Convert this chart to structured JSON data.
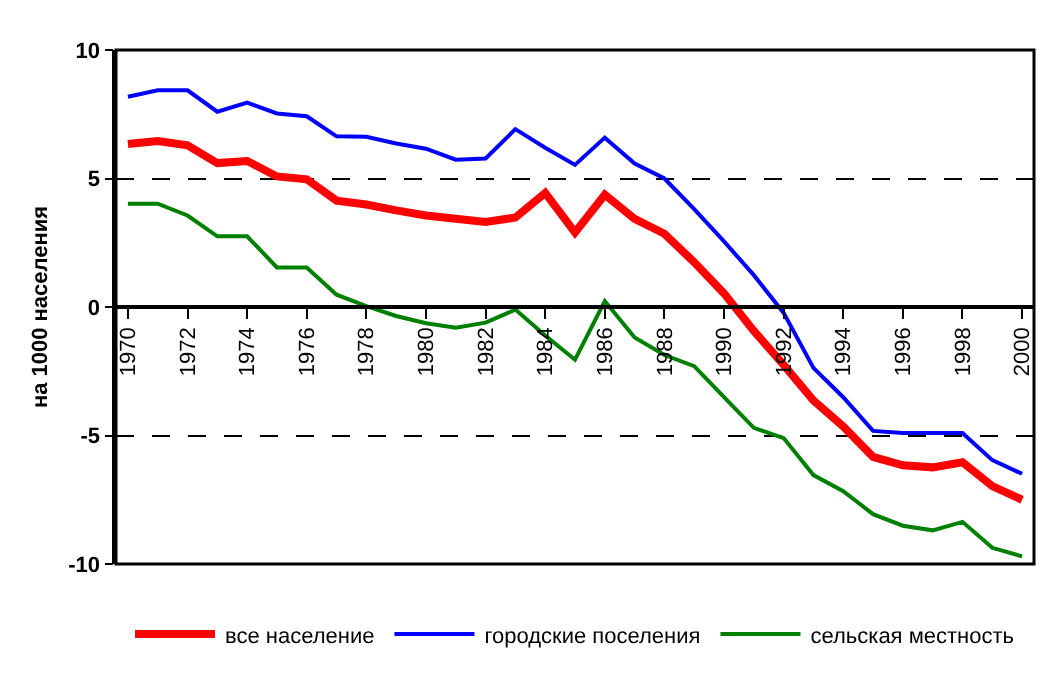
{
  "chart_data": {
    "type": "line",
    "ylabel": "на 1000 населения",
    "x": [
      1970,
      1971,
      1972,
      1973,
      1974,
      1975,
      1976,
      1977,
      1978,
      1979,
      1980,
      1981,
      1982,
      1983,
      1984,
      1985,
      1986,
      1987,
      1988,
      1989,
      1990,
      1991,
      1992,
      1993,
      1994,
      1995,
      1996,
      1997,
      1998,
      1999,
      2000
    ],
    "series": [
      {
        "name": "все население",
        "color": "#ff0000",
        "values": [
          6.34,
          6.46,
          6.29,
          5.6,
          5.68,
          5.08,
          4.97,
          4.14,
          3.99,
          3.76,
          3.56,
          3.43,
          3.31,
          3.48,
          4.44,
          2.9,
          4.37,
          3.43,
          2.85,
          1.74,
          0.53,
          -0.93,
          -2.25,
          -3.64,
          -4.65,
          -5.83,
          -6.16,
          -6.24,
          -6.04,
          -6.97,
          -7.5
        ]
      },
      {
        "name": "городские поселения",
        "color": "#0000ff",
        "values": [
          8.18,
          8.43,
          8.43,
          7.6,
          7.95,
          7.53,
          7.42,
          6.64,
          6.62,
          6.36,
          6.16,
          5.73,
          5.78,
          6.92,
          6.2,
          5.53,
          6.59,
          5.58,
          5.0,
          3.81,
          2.55,
          1.24,
          -0.23,
          -2.37,
          -3.51,
          -4.82,
          -4.9,
          -4.9,
          -4.9,
          -5.96,
          -6.49
        ]
      },
      {
        "name": "сельская местность",
        "color": "#008000",
        "values": [
          4.02,
          4.02,
          3.56,
          2.75,
          2.75,
          1.54,
          1.54,
          0.48,
          0.03,
          -0.35,
          -0.63,
          -0.81,
          -0.61,
          -0.1,
          -1.11,
          -2.05,
          0.23,
          -1.19,
          -1.87,
          -2.3,
          -3.51,
          -4.7,
          -5.1,
          -6.54,
          -7.17,
          -8.06,
          -8.51,
          -8.69,
          -8.36,
          -9.37,
          -9.7
        ]
      }
    ],
    "xlim": [
      1969.6,
      2000.4
    ],
    "xticks": [
      1970,
      1972,
      1974,
      1976,
      1978,
      1980,
      1982,
      1984,
      1986,
      1988,
      1990,
      1992,
      1994,
      1996,
      1998,
      2000
    ],
    "ylim": [
      -10,
      10
    ],
    "yticks": [
      -10,
      -5,
      0,
      5,
      10
    ],
    "grid": "y",
    "legend": "bottom",
    "marker": "none",
    "line_style": "solid"
  }
}
